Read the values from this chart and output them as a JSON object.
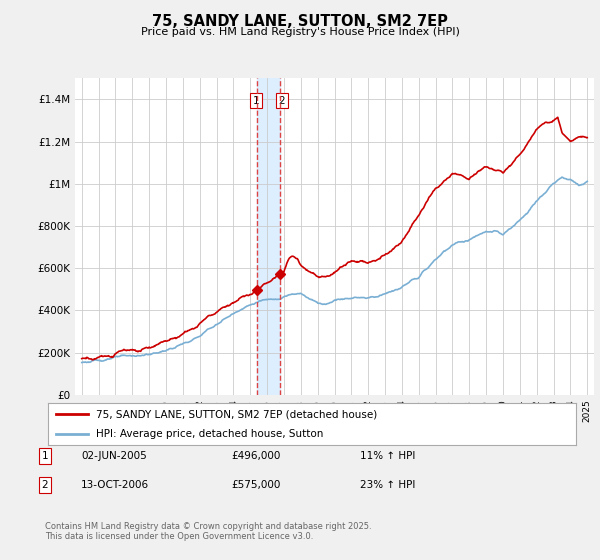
{
  "title": "75, SANDY LANE, SUTTON, SM2 7EP",
  "subtitle": "Price paid vs. HM Land Registry's House Price Index (HPI)",
  "red_label": "75, SANDY LANE, SUTTON, SM2 7EP (detached house)",
  "blue_label": "HPI: Average price, detached house, Sutton",
  "transaction1_date": "02-JUN-2005",
  "transaction1_price": "£496,000",
  "transaction1_hpi": "11% ↑ HPI",
  "transaction1_year": 2005.42,
  "transaction1_value": 496000,
  "transaction2_date": "13-OCT-2006",
  "transaction2_price": "£575,000",
  "transaction2_hpi": "23% ↑ HPI",
  "transaction2_year": 2006.79,
  "transaction2_value": 575000,
  "footer": "Contains HM Land Registry data © Crown copyright and database right 2025.\nThis data is licensed under the Open Government Licence v3.0.",
  "ylim": [
    0,
    1500000
  ],
  "yticks": [
    0,
    200000,
    400000,
    600000,
    800000,
    1000000,
    1200000,
    1400000
  ],
  "ytick_labels": [
    "£0",
    "£200K",
    "£400K",
    "£600K",
    "£800K",
    "£1M",
    "£1.2M",
    "£1.4M"
  ],
  "background_color": "#f0f0f0",
  "plot_bg_color": "#ffffff",
  "red_color": "#cc0000",
  "blue_color": "#7aafd4",
  "vline_color": "#dd4444",
  "band_color": "#ddeeff",
  "grid_color": "#cccccc"
}
